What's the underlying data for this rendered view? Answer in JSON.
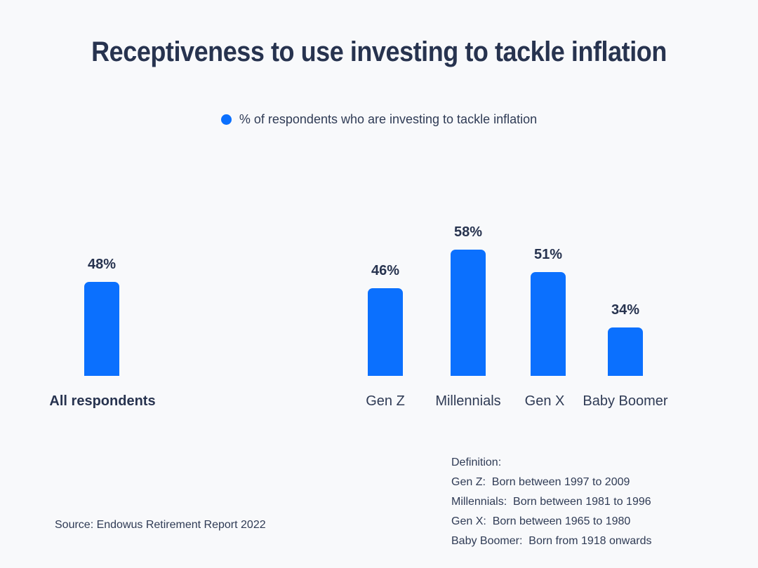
{
  "page": {
    "background": "#f8f9fb"
  },
  "chart_data": {
    "type": "bar",
    "title": "Receptiveness to use investing to tackle inflation",
    "legend_label": "% of respondents who are investing to tackle inflation",
    "legend_position": "top-center",
    "bar_color": "#0b70fe",
    "unit": "%",
    "axes_hidden": true,
    "ylim_hint": [
      19,
      65
    ],
    "bars": [
      {
        "category": "All respondents",
        "value": 48,
        "label": "48%"
      },
      {
        "category": "Gen Z",
        "value": 46,
        "label": "46%"
      },
      {
        "category": "Millennials",
        "value": 58,
        "label": "58%"
      },
      {
        "category": "Gen X",
        "value": 51,
        "label": "51%"
      },
      {
        "category": "Baby Boomer",
        "value": 34,
        "label": "34%"
      }
    ]
  },
  "definitions": {
    "heading": "Definition:",
    "items": [
      "Gen Z:  Born between 1997 to 2009",
      "Millennials:  Born between 1981 to 1996",
      "Gen X:  Born between 1965 to 1980",
      "Baby Boomer:  Born from 1918 onwards"
    ]
  },
  "source": "Source: Endowus Retirement Report 2022"
}
